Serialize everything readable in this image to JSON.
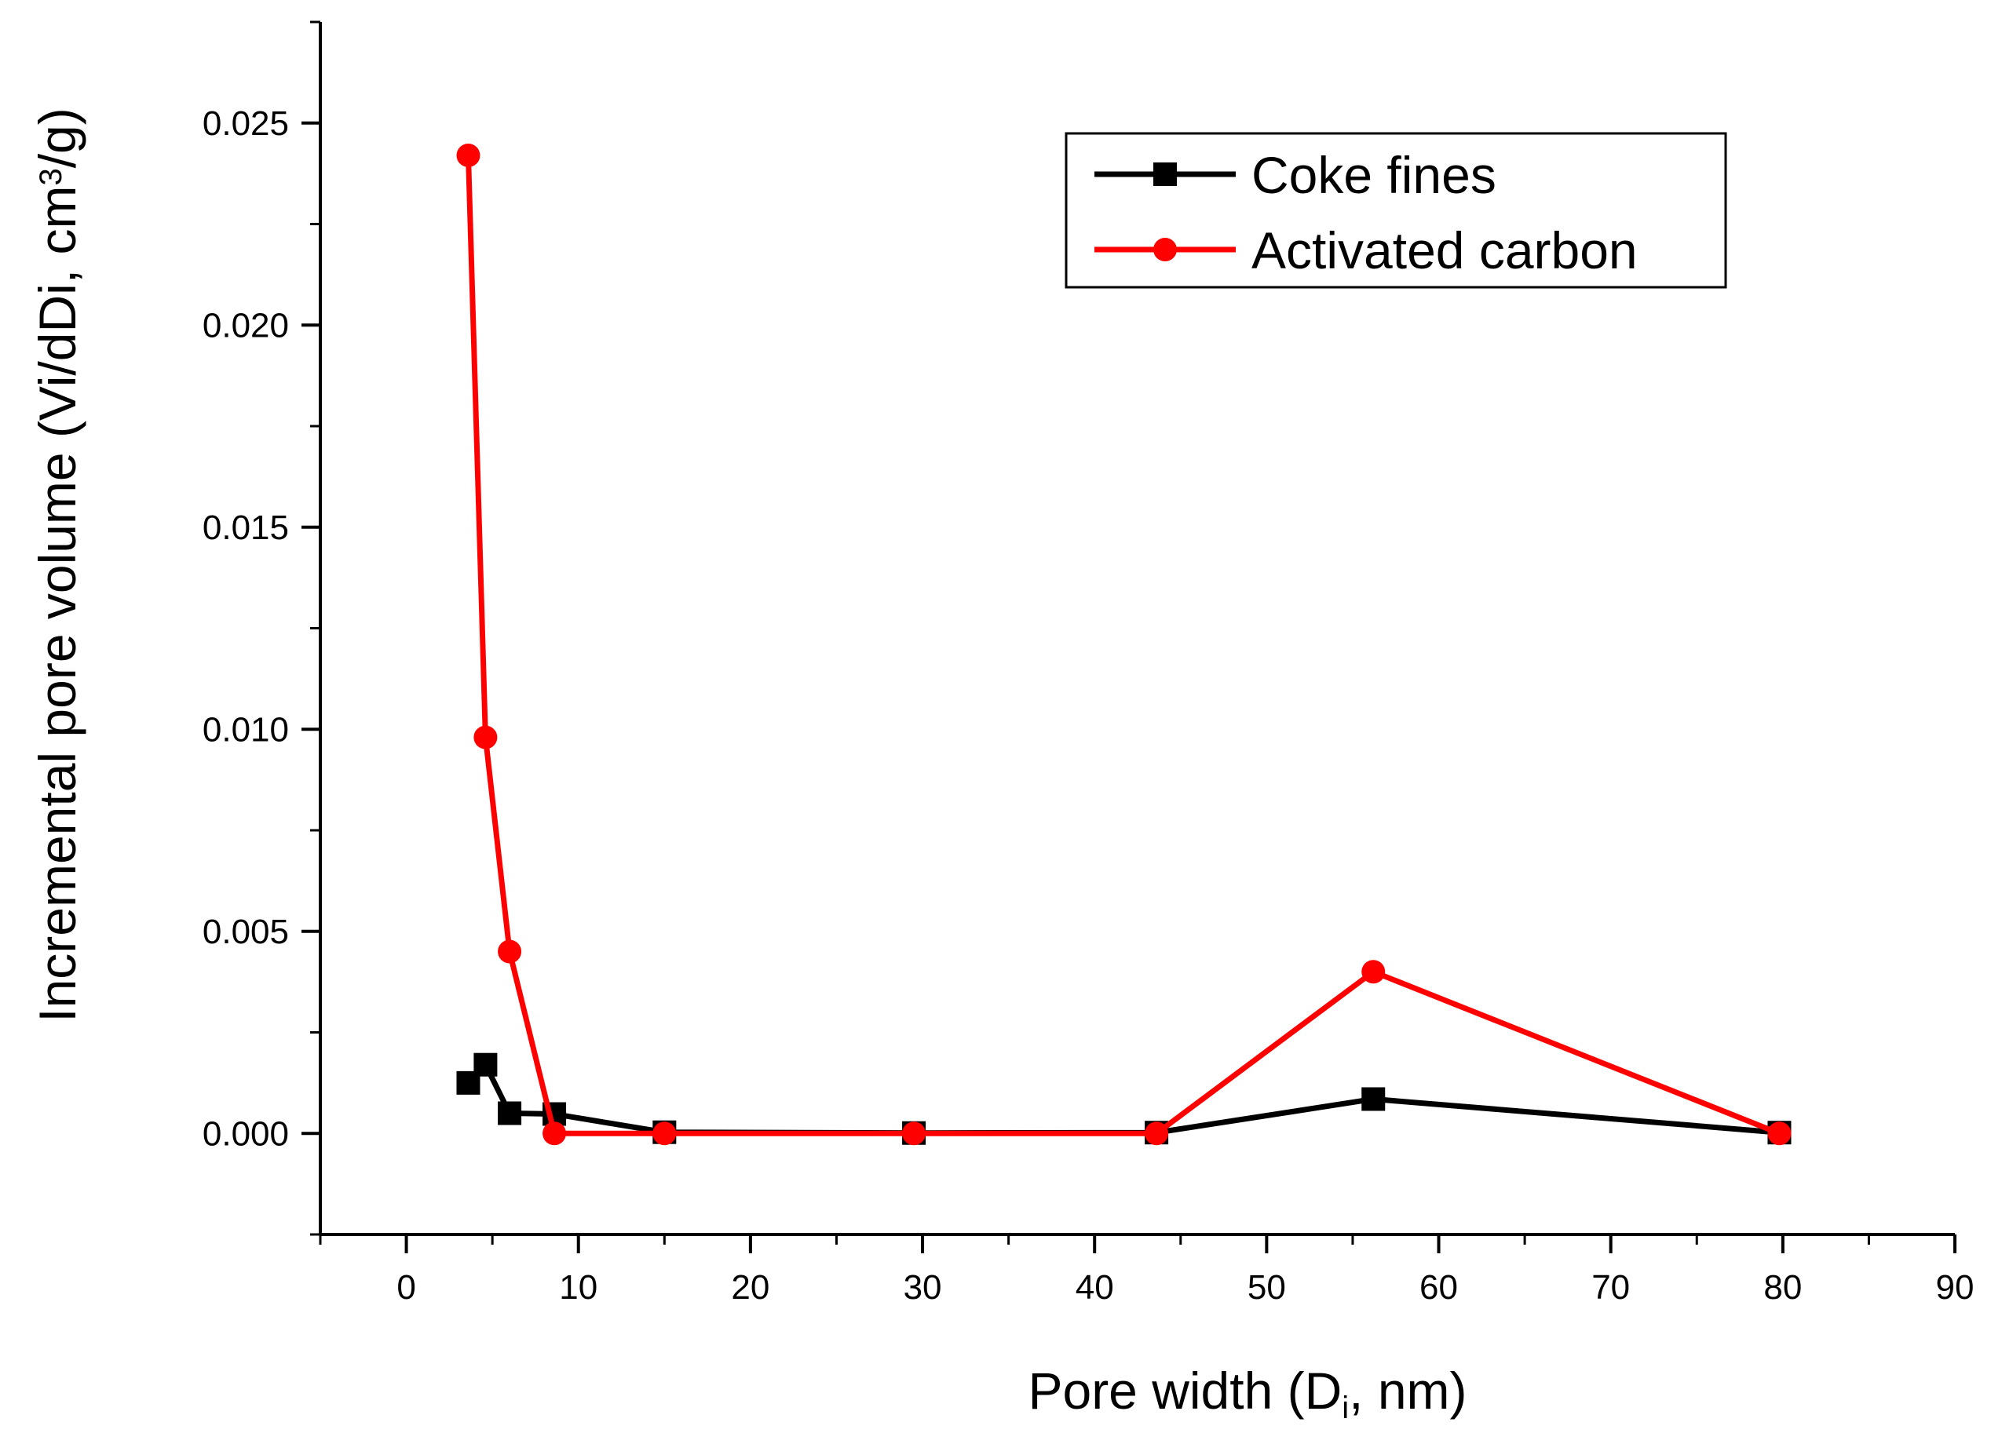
{
  "chart_data": {
    "type": "line",
    "xlabel": {
      "main": "Pore width (D",
      "sub": "i",
      "tail": ", nm)"
    },
    "ylabel": {
      "main": "Incremental pore volume (Vi/dDi, cm",
      "sup": "3",
      "tail": "/g)"
    },
    "xlim": [
      -5,
      90
    ],
    "ylim": [
      -0.0025,
      0.0275
    ],
    "x_ticks": [
      "0",
      "10",
      "20",
      "30",
      "40",
      "50",
      "60",
      "70",
      "80",
      "90"
    ],
    "y_ticks": [
      "0.000",
      "0.005",
      "0.010",
      "0.015",
      "0.020",
      "0.025"
    ],
    "legend_position": "top-right",
    "grid": false,
    "series": [
      {
        "name": "Coke fines",
        "color": "#000000",
        "marker": "square",
        "x": [
          3.6,
          4.6,
          6.0,
          8.6,
          15.0,
          29.5,
          43.6,
          56.2,
          79.8
        ],
        "y": [
          0.00125,
          0.0017,
          0.0005,
          0.00048,
          3e-05,
          1e-05,
          2e-05,
          0.00085,
          2e-05
        ]
      },
      {
        "name": "Activated carbon",
        "color": "#ff0000",
        "marker": "circle",
        "x": [
          3.6,
          4.6,
          6.0,
          8.6,
          15.0,
          29.5,
          43.6,
          56.2,
          79.8
        ],
        "y": [
          0.0242,
          0.0098,
          0.0045,
          0.0,
          0.0,
          0.0,
          0.0,
          0.004,
          0.0
        ]
      }
    ]
  }
}
